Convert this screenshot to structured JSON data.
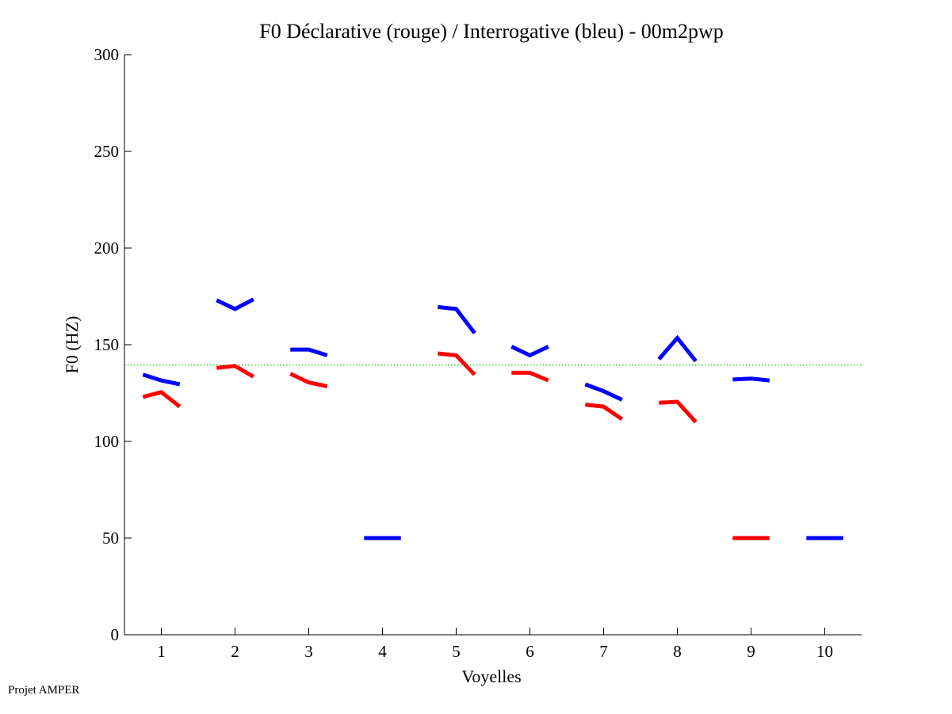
{
  "footer": {
    "text": "Projet AMPER"
  },
  "chart_data": {
    "type": "line",
    "title": "F0 Déclarative (rouge) / Interrogative (bleu) - 00m2pwp",
    "xlabel": "Voyelles",
    "ylabel": "F0 (HZ)",
    "xlim": [
      0.5,
      10.5
    ],
    "ylim": [
      0,
      300
    ],
    "xticks": [
      1,
      2,
      3,
      4,
      5,
      6,
      7,
      8,
      9,
      10
    ],
    "yticks": [
      0,
      50,
      100,
      150,
      200,
      250,
      300
    ],
    "grid": false,
    "reference_line": {
      "value": 139.5,
      "color": "#00cc00",
      "style": "dotted"
    },
    "segment_offsets": [
      -0.25,
      0,
      0.25
    ],
    "series": [
      {
        "color": "#ff0000",
        "segments": [
          {
            "x": 1,
            "values": [
              123,
              125.5,
              118
            ]
          },
          {
            "x": 2,
            "values": [
              138,
              139,
              133.5
            ]
          },
          {
            "x": 3,
            "values": [
              135,
              130.5,
              128.5
            ]
          },
          {
            "x": 5,
            "values": [
              145.5,
              144.5,
              134.5
            ]
          },
          {
            "x": 6,
            "values": [
              135.5,
              135.5,
              131.5
            ]
          },
          {
            "x": 7,
            "values": [
              119,
              118,
              111.5
            ]
          },
          {
            "x": 8,
            "values": [
              120,
              120.5,
              110
            ]
          },
          {
            "x": 9,
            "values": [
              50,
              50,
              50
            ]
          }
        ]
      },
      {
        "color": "#0000ff",
        "segments": [
          {
            "x": 1,
            "values": [
              134.5,
              131.5,
              129.5
            ]
          },
          {
            "x": 2,
            "values": [
              173,
              168.5,
              173.5
            ]
          },
          {
            "x": 3,
            "values": [
              147.5,
              147.5,
              144.5
            ]
          },
          {
            "x": 4,
            "values": [
              50,
              50,
              50
            ]
          },
          {
            "x": 5,
            "values": [
              169.5,
              168.5,
              156
            ]
          },
          {
            "x": 6,
            "values": [
              149,
              144.5,
              149
            ]
          },
          {
            "x": 7,
            "values": [
              129.5,
              126,
              121.5
            ]
          },
          {
            "x": 8,
            "values": [
              142.5,
              153.5,
              141.5
            ]
          },
          {
            "x": 9,
            "values": [
              132,
              132.5,
              131.5
            ]
          },
          {
            "x": 10,
            "values": [
              50,
              50,
              50
            ]
          }
        ]
      }
    ]
  }
}
